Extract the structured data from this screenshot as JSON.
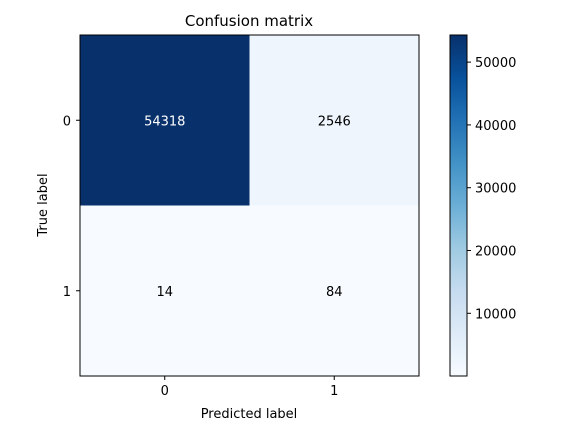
{
  "chart_data": {
    "type": "heatmap",
    "title": "Confusion matrix",
    "xlabel": "Predicted label",
    "ylabel": "True label",
    "x_categories": [
      "0",
      "1"
    ],
    "y_categories": [
      "0",
      "1"
    ],
    "values": [
      [
        54318,
        2546
      ],
      [
        14,
        84
      ]
    ],
    "colormap": "Blues",
    "colorbar": {
      "min": 14,
      "max": 54318,
      "ticks": [
        10000,
        20000,
        30000,
        40000,
        50000
      ],
      "tick_labels": [
        "10000",
        "20000",
        "30000",
        "40000",
        "50000"
      ]
    }
  }
}
